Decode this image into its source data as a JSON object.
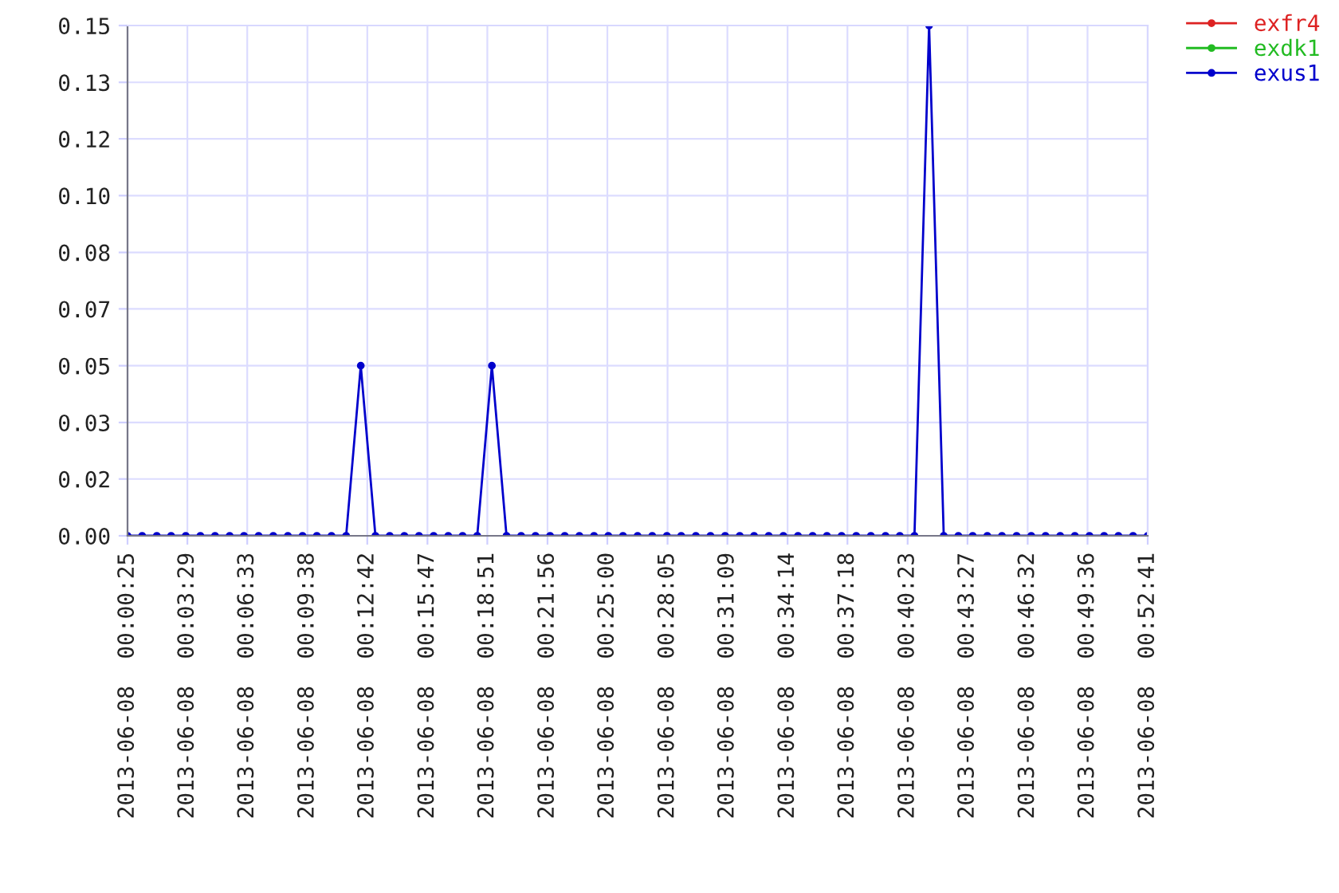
{
  "chart_data": {
    "type": "line",
    "x": [
      "2013-06-08T00:00:25",
      "2013-06-08T00:01:10",
      "2013-06-08T00:01:55",
      "2013-06-08T00:02:39",
      "2013-06-08T00:03:24",
      "2013-06-08T00:04:09",
      "2013-06-08T00:04:54",
      "2013-06-08T00:05:39",
      "2013-06-08T00:06:23",
      "2013-06-08T00:07:08",
      "2013-06-08T00:07:53",
      "2013-06-08T00:08:38",
      "2013-06-08T00:09:23",
      "2013-06-08T00:10:07",
      "2013-06-08T00:10:52",
      "2013-06-08T00:11:37",
      "2013-06-08T00:12:22",
      "2013-06-08T00:13:07",
      "2013-06-08T00:13:51",
      "2013-06-08T00:14:36",
      "2013-06-08T00:15:21",
      "2013-06-08T00:16:06",
      "2013-06-08T00:16:51",
      "2013-06-08T00:17:35",
      "2013-06-08T00:18:20",
      "2013-06-08T00:19:05",
      "2013-06-08T00:19:50",
      "2013-06-08T00:20:35",
      "2013-06-08T00:21:19",
      "2013-06-08T00:22:04",
      "2013-06-08T00:22:49",
      "2013-06-08T00:23:34",
      "2013-06-08T00:24:19",
      "2013-06-08T00:25:03",
      "2013-06-08T00:25:48",
      "2013-06-08T00:26:33",
      "2013-06-08T00:27:18",
      "2013-06-08T00:28:03",
      "2013-06-08T00:28:47",
      "2013-06-08T00:29:32",
      "2013-06-08T00:30:17",
      "2013-06-08T00:31:02",
      "2013-06-08T00:31:47",
      "2013-06-08T00:32:31",
      "2013-06-08T00:33:16",
      "2013-06-08T00:34:01",
      "2013-06-08T00:34:46",
      "2013-06-08T00:35:31",
      "2013-06-08T00:36:15",
      "2013-06-08T00:37:00",
      "2013-06-08T00:37:45",
      "2013-06-08T00:38:30",
      "2013-06-08T00:39:15",
      "2013-06-08T00:39:59",
      "2013-06-08T00:40:44",
      "2013-06-08T00:41:29",
      "2013-06-08T00:42:14",
      "2013-06-08T00:42:59",
      "2013-06-08T00:43:43",
      "2013-06-08T00:44:28",
      "2013-06-08T00:45:13",
      "2013-06-08T00:45:58",
      "2013-06-08T00:46:43",
      "2013-06-08T00:47:27",
      "2013-06-08T00:48:12",
      "2013-06-08T00:48:57",
      "2013-06-08T00:49:42",
      "2013-06-08T00:50:27",
      "2013-06-08T00:51:11",
      "2013-06-08T00:51:56",
      "2013-06-08T00:52:41"
    ],
    "series": [
      {
        "name": "exfr4",
        "color": "#dd2222",
        "values": [
          null,
          null,
          null,
          null,
          null,
          null,
          null,
          null,
          null,
          null,
          null,
          null,
          null,
          null,
          null,
          null,
          null,
          null,
          null,
          null,
          null,
          null,
          null,
          null,
          null,
          null,
          null,
          null,
          null,
          null,
          null,
          null,
          null,
          null,
          null,
          null,
          null,
          null,
          null,
          null,
          null,
          null,
          null,
          null,
          null,
          null,
          null,
          null,
          null,
          null,
          null,
          null,
          null,
          null,
          null,
          null,
          null,
          null,
          null,
          null,
          null,
          null,
          null,
          null,
          null,
          null,
          null,
          null,
          null,
          null,
          null
        ]
      },
      {
        "name": "exdk1",
        "color": "#22bb22",
        "values": [
          null,
          null,
          null,
          null,
          null,
          null,
          null,
          null,
          null,
          null,
          null,
          null,
          null,
          null,
          null,
          null,
          null,
          null,
          null,
          null,
          null,
          null,
          null,
          null,
          null,
          null,
          null,
          null,
          null,
          null,
          null,
          null,
          null,
          null,
          null,
          null,
          null,
          null,
          null,
          null,
          null,
          null,
          null,
          null,
          null,
          null,
          null,
          null,
          null,
          null,
          null,
          null,
          null,
          null,
          null,
          null,
          null,
          null,
          null,
          null,
          null,
          null,
          null,
          null,
          null,
          null,
          null,
          null,
          null,
          null,
          null
        ]
      },
      {
        "name": "exus1",
        "color": "#0000cc",
        "values": [
          0,
          0,
          0,
          0,
          0,
          0,
          0,
          0,
          0,
          0,
          0,
          0,
          0,
          0,
          0,
          0,
          0.05,
          0,
          0,
          0,
          0,
          0,
          0,
          0,
          0,
          0.05,
          0,
          0,
          0,
          0,
          0,
          0,
          0,
          0,
          0,
          0,
          0,
          0,
          0,
          0,
          0,
          0,
          0,
          0,
          0,
          0,
          0,
          0,
          0,
          0,
          0,
          0,
          0,
          0,
          0,
          0.15,
          0,
          0,
          0,
          0,
          0,
          0,
          0,
          0,
          0,
          0,
          0,
          0,
          0,
          0,
          0
        ]
      }
    ],
    "xlim": [
      "2013-06-08T00:00:25",
      "2013-06-08T00:52:41"
    ],
    "xticks": [
      {
        "value": "2013-06-08T00:00:25",
        "label": "2013-06-08  00:00:25"
      },
      {
        "value": "2013-06-08T00:03:29",
        "label": "2013-06-08  00:03:29"
      },
      {
        "value": "2013-06-08T00:06:33",
        "label": "2013-06-08  00:06:33"
      },
      {
        "value": "2013-06-08T00:09:38",
        "label": "2013-06-08  00:09:38"
      },
      {
        "value": "2013-06-08T00:12:42",
        "label": "2013-06-08  00:12:42"
      },
      {
        "value": "2013-06-08T00:15:47",
        "label": "2013-06-08  00:15:47"
      },
      {
        "value": "2013-06-08T00:18:51",
        "label": "2013-06-08  00:18:51"
      },
      {
        "value": "2013-06-08T00:21:56",
        "label": "2013-06-08  00:21:56"
      },
      {
        "value": "2013-06-08T00:25:00",
        "label": "2013-06-08  00:25:00"
      },
      {
        "value": "2013-06-08T00:28:05",
        "label": "2013-06-08  00:28:05"
      },
      {
        "value": "2013-06-08T00:31:09",
        "label": "2013-06-08  00:31:09"
      },
      {
        "value": "2013-06-08T00:34:14",
        "label": "2013-06-08  00:34:14"
      },
      {
        "value": "2013-06-08T00:37:18",
        "label": "2013-06-08  00:37:18"
      },
      {
        "value": "2013-06-08T00:40:23",
        "label": "2013-06-08  00:40:23"
      },
      {
        "value": "2013-06-08T00:43:27",
        "label": "2013-06-08  00:43:27"
      },
      {
        "value": "2013-06-08T00:46:32",
        "label": "2013-06-08  00:46:32"
      },
      {
        "value": "2013-06-08T00:49:36",
        "label": "2013-06-08  00:49:36"
      },
      {
        "value": "2013-06-08T00:52:41",
        "label": "2013-06-08  00:52:41"
      }
    ],
    "ylim": [
      0,
      0.15
    ],
    "yticks": [
      {
        "value": 0,
        "label": "0.00"
      },
      {
        "value": 0.0167,
        "label": "0.02"
      },
      {
        "value": 0.0333,
        "label": "0.03"
      },
      {
        "value": 0.05,
        "label": "0.05"
      },
      {
        "value": 0.0667,
        "label": "0.07"
      },
      {
        "value": 0.0833,
        "label": "0.08"
      },
      {
        "value": 0.1,
        "label": "0.10"
      },
      {
        "value": 0.1167,
        "label": "0.12"
      },
      {
        "value": 0.1333,
        "label": "0.13"
      },
      {
        "value": 0.15,
        "label": "0.15"
      }
    ],
    "grid": true,
    "legend": "top right",
    "marker": "circle",
    "line_style": "solid"
  }
}
